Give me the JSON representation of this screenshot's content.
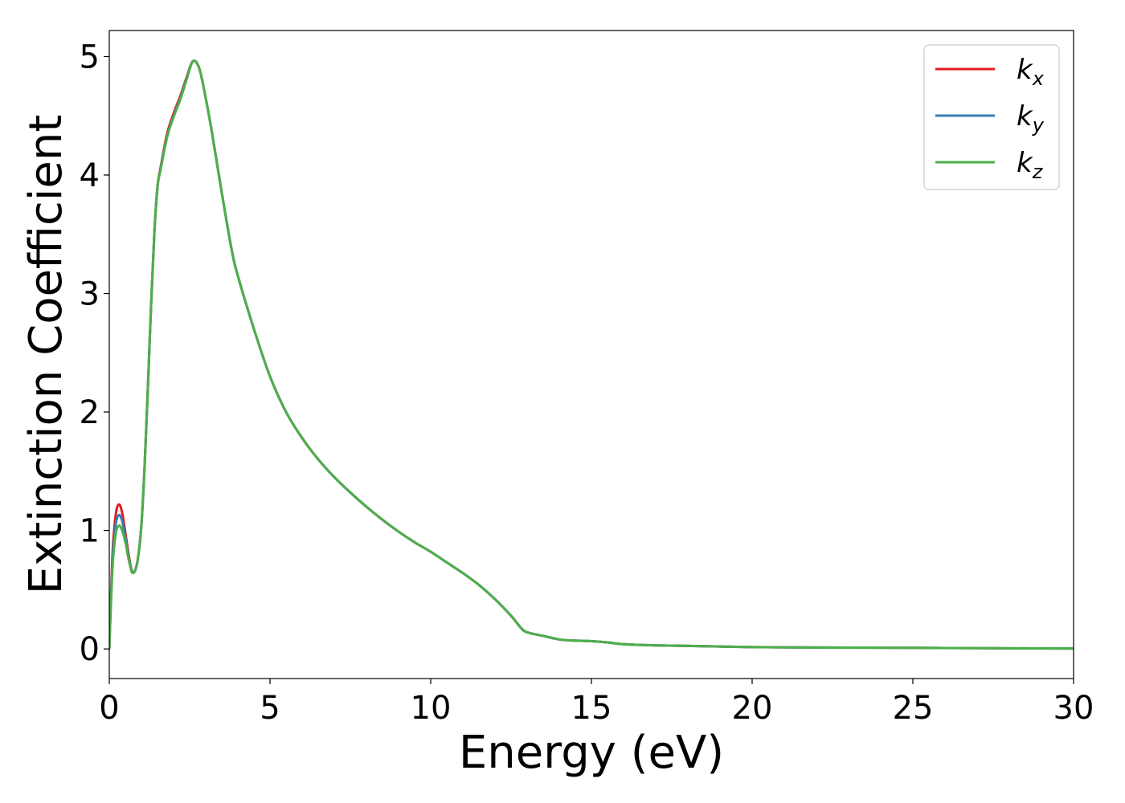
{
  "chart_data": {
    "type": "line",
    "xlabel": "Energy (eV)",
    "ylabel": "Extinction Coefficient",
    "xlim": [
      0,
      30
    ],
    "ylim": [
      -0.25,
      5.22
    ],
    "xticks": [
      "0",
      "5",
      "10",
      "15",
      "20",
      "25",
      "30"
    ],
    "yticks": [
      "0",
      "1",
      "2",
      "3",
      "4",
      "5"
    ],
    "grid": false,
    "legend_position": "top-right",
    "series": [
      {
        "name": "k_x",
        "label_main": "k",
        "label_sub": "x",
        "color": "#e41a1c",
        "x": [
          0,
          0.1,
          0.2,
          0.3,
          0.4,
          0.5,
          0.6,
          0.7,
          0.8,
          0.9,
          1.0,
          1.1,
          1.2,
          1.3,
          1.4,
          1.5,
          1.6,
          1.8,
          2.0,
          2.2,
          2.4,
          2.6,
          2.8,
          3.0,
          3.2,
          3.5,
          3.8,
          4.0,
          4.5,
          5.0,
          5.5,
          6.0,
          6.5,
          7.0,
          7.5,
          8.0,
          8.5,
          9.0,
          9.5,
          10.0,
          10.5,
          11.0,
          11.5,
          12.0,
          12.5,
          12.8,
          13.0,
          13.5,
          14.0,
          14.5,
          15.0,
          15.5,
          16.0,
          17.0,
          18.0,
          19.0,
          20.0,
          22.0,
          24.0,
          26.0,
          28.0,
          30.0
        ],
        "values": [
          0,
          0.8,
          1.13,
          1.22,
          1.15,
          0.98,
          0.8,
          0.66,
          0.66,
          0.78,
          1.05,
          1.55,
          2.2,
          2.9,
          3.5,
          3.9,
          4.07,
          4.35,
          4.52,
          4.66,
          4.82,
          4.96,
          4.9,
          4.65,
          4.35,
          3.85,
          3.38,
          3.15,
          2.7,
          2.3,
          2.0,
          1.78,
          1.6,
          1.45,
          1.32,
          1.2,
          1.09,
          0.99,
          0.9,
          0.82,
          0.73,
          0.64,
          0.54,
          0.42,
          0.28,
          0.18,
          0.14,
          0.11,
          0.08,
          0.07,
          0.065,
          0.055,
          0.04,
          0.03,
          0.025,
          0.02,
          0.015,
          0.012,
          0.01,
          0.008,
          0.005,
          0.003
        ]
      },
      {
        "name": "k_y",
        "label_main": "k",
        "label_sub": "y",
        "color": "#377eb8",
        "x": [
          0,
          0.1,
          0.2,
          0.3,
          0.4,
          0.5,
          0.6,
          0.7,
          0.8,
          0.9,
          1.0,
          1.1,
          1.2,
          1.3,
          1.4,
          1.5,
          1.6,
          1.8,
          2.0,
          2.2,
          2.4,
          2.6,
          2.8,
          3.0,
          3.2,
          3.5,
          3.8,
          4.0,
          4.5,
          5.0,
          5.5,
          6.0,
          6.5,
          7.0,
          7.5,
          8.0,
          8.5,
          9.0,
          9.5,
          10.0,
          10.5,
          11.0,
          11.5,
          12.0,
          12.5,
          12.8,
          13.0,
          13.5,
          14.0,
          14.5,
          15.0,
          15.5,
          16.0,
          17.0,
          18.0,
          19.0,
          20.0,
          22.0,
          24.0,
          26.0,
          28.0,
          30.0
        ],
        "values": [
          0,
          0.74,
          1.05,
          1.13,
          1.08,
          0.94,
          0.78,
          0.66,
          0.66,
          0.78,
          1.05,
          1.55,
          2.2,
          2.9,
          3.5,
          3.9,
          4.06,
          4.33,
          4.5,
          4.64,
          4.81,
          4.96,
          4.9,
          4.65,
          4.35,
          3.85,
          3.38,
          3.15,
          2.7,
          2.3,
          2.0,
          1.78,
          1.6,
          1.45,
          1.32,
          1.2,
          1.09,
          0.99,
          0.9,
          0.82,
          0.73,
          0.64,
          0.54,
          0.42,
          0.28,
          0.18,
          0.14,
          0.11,
          0.08,
          0.07,
          0.065,
          0.055,
          0.04,
          0.03,
          0.025,
          0.02,
          0.015,
          0.012,
          0.01,
          0.008,
          0.005,
          0.003
        ]
      },
      {
        "name": "k_z",
        "label_main": "k",
        "label_sub": "z",
        "color": "#4daf4a",
        "x": [
          0,
          0.1,
          0.2,
          0.3,
          0.4,
          0.5,
          0.6,
          0.7,
          0.8,
          0.9,
          1.0,
          1.1,
          1.2,
          1.3,
          1.4,
          1.5,
          1.6,
          1.8,
          2.0,
          2.2,
          2.4,
          2.6,
          2.8,
          3.0,
          3.2,
          3.5,
          3.8,
          4.0,
          4.5,
          5.0,
          5.5,
          6.0,
          6.5,
          7.0,
          7.5,
          8.0,
          8.5,
          9.0,
          9.5,
          10.0,
          10.5,
          11.0,
          11.5,
          12.0,
          12.5,
          12.8,
          13.0,
          13.5,
          14.0,
          14.5,
          15.0,
          15.5,
          16.0,
          17.0,
          18.0,
          19.0,
          20.0,
          22.0,
          24.0,
          26.0,
          28.0,
          30.0
        ],
        "values": [
          0,
          0.68,
          0.97,
          1.04,
          1.0,
          0.9,
          0.76,
          0.65,
          0.66,
          0.78,
          1.05,
          1.55,
          2.2,
          2.9,
          3.5,
          3.9,
          4.05,
          4.32,
          4.49,
          4.63,
          4.8,
          4.96,
          4.9,
          4.65,
          4.35,
          3.85,
          3.38,
          3.15,
          2.7,
          2.3,
          2.0,
          1.78,
          1.6,
          1.45,
          1.32,
          1.2,
          1.09,
          0.99,
          0.9,
          0.82,
          0.73,
          0.64,
          0.54,
          0.42,
          0.28,
          0.18,
          0.14,
          0.11,
          0.08,
          0.07,
          0.065,
          0.055,
          0.04,
          0.03,
          0.025,
          0.02,
          0.015,
          0.012,
          0.01,
          0.008,
          0.005,
          0.003
        ]
      }
    ]
  }
}
